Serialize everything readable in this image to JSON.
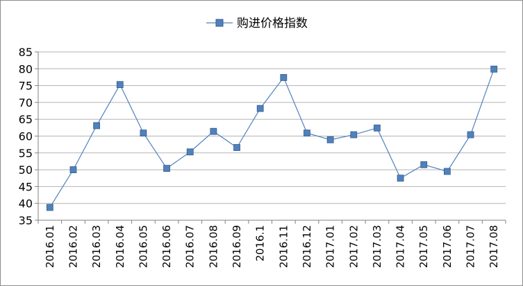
{
  "chart_data": {
    "type": "line",
    "title": "",
    "xlabel": "",
    "ylabel": "",
    "ylim": [
      35,
      85
    ],
    "yticks": [
      35,
      40,
      45,
      50,
      55,
      60,
      65,
      70,
      75,
      80,
      85
    ],
    "grid": "horizontal",
    "legend_position": "top-center",
    "categories": [
      "2016.01",
      "2016.02",
      "2016.03",
      "2016.04",
      "2016.05",
      "2016.06",
      "2016.07",
      "2016.08",
      "2016.09",
      "2016.1",
      "2016.11",
      "2016.12",
      "2017.01",
      "2017.02",
      "2017.03",
      "2017.04",
      "2017.05",
      "2017.06",
      "2017.07",
      "2017.08"
    ],
    "series": [
      {
        "name": "购进价格指数",
        "color": "#4f81bd",
        "marker": "square",
        "values": [
          38.8,
          50.0,
          63.1,
          75.3,
          60.9,
          50.4,
          55.3,
          61.4,
          56.6,
          68.2,
          77.4,
          60.9,
          58.9,
          60.4,
          62.4,
          47.5,
          51.5,
          49.5,
          60.4,
          79.9
        ]
      }
    ]
  }
}
